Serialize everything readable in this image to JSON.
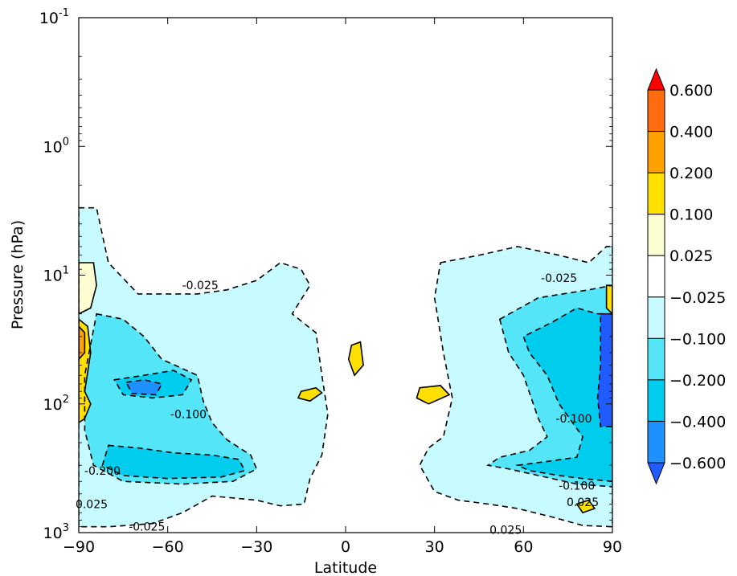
{
  "chart_data": {
    "type": "heatmap",
    "title": "",
    "xlabel": "Latitude",
    "ylabel": "Pressure (hPa)",
    "xlim": [
      -90,
      90
    ],
    "xticks": [
      -90,
      -60,
      -30,
      0,
      30,
      60,
      90
    ],
    "xtick_labels": [
      "−90",
      "−60",
      "−30",
      "0",
      "30",
      "60",
      "90"
    ],
    "ylim": [
      1000,
      0.1
    ],
    "yscale": "log",
    "yaxis_inverted": true,
    "yticks": [
      {
        "value": 0.1,
        "base": "10",
        "exp": "-1"
      },
      {
        "value": 1,
        "base": "10",
        "exp": "0"
      },
      {
        "value": 10,
        "base": "10",
        "exp": "1"
      },
      {
        "value": 100,
        "base": "10",
        "exp": "2"
      },
      {
        "value": 1000,
        "base": "10",
        "exp": "3"
      }
    ],
    "grid": false,
    "colorbar": {
      "extend": "both",
      "levels": [
        -0.6,
        -0.4,
        -0.2,
        -0.1,
        -0.025,
        0.025,
        0.1,
        0.2,
        0.4,
        0.6
      ],
      "tick_labels": [
        "−0.600",
        "−0.400",
        "−0.200",
        "−0.100",
        "−0.025",
        "0.025",
        "0.100",
        "0.200",
        "0.400",
        "0.600"
      ],
      "colors": [
        "#1f5bff",
        "#1e90ff",
        "#00ccee",
        "#55e5f8",
        "#c8fbff",
        "#ffffff",
        "#fdfdd2",
        "#ffe000",
        "#ffa100",
        "#ff6c10",
        "#ff0000"
      ],
      "under_color": "#1f5bff",
      "over_color": "#ff0000"
    },
    "contour_labels": [
      {
        "text": "-0.025",
        "lat": -49,
        "p": 12
      },
      {
        "text": "-0.025",
        "lat": 72,
        "p": 10.5
      },
      {
        "text": "-0.100",
        "lat": -53,
        "p": 120
      },
      {
        "text": "-0.200",
        "lat": -82,
        "p": 330
      },
      {
        "text": "-0.100",
        "lat": 77,
        "p": 130
      },
      {
        "text": "-0.100",
        "lat": 78,
        "p": 430
      },
      {
        "text": "0.025",
        "lat": -95,
        "p": 600
      },
      {
        "text": "0.025",
        "lat": 80,
        "p": 580
      },
      {
        "text": "-0.025",
        "lat": -67,
        "p": 900
      },
      {
        "text": "0.025",
        "lat": 54,
        "p": 950
      }
    ],
    "regions": [
      {
        "level": "-0.025",
        "lat_range": [
          -90,
          -5
        ],
        "p_range": [
          10,
          1000
        ],
        "description": "broad weak negative region in southern hemisphere"
      },
      {
        "level": "-0.025",
        "lat_range": [
          25,
          90
        ],
        "p_range": [
          6,
          1000
        ],
        "description": "broad weak negative region in northern hemisphere"
      },
      {
        "level": "-0.100",
        "lat_range": [
          -75,
          -45
        ],
        "p_range": [
          100,
          400
        ]
      },
      {
        "level": "-0.200",
        "lat_range": [
          -80,
          -45
        ],
        "p_range": [
          200,
          400
        ]
      },
      {
        "level": "-0.200",
        "lat_range": [
          60,
          90
        ],
        "p_range": [
          25,
          70
        ]
      },
      {
        "level": "-0.600",
        "lat_range": [
          85,
          90
        ],
        "p_range": [
          20,
          150
        ]
      },
      {
        "level": "0.100",
        "lat_range": [
          -90,
          -85
        ],
        "p_range": [
          20,
          140
        ]
      }
    ]
  }
}
